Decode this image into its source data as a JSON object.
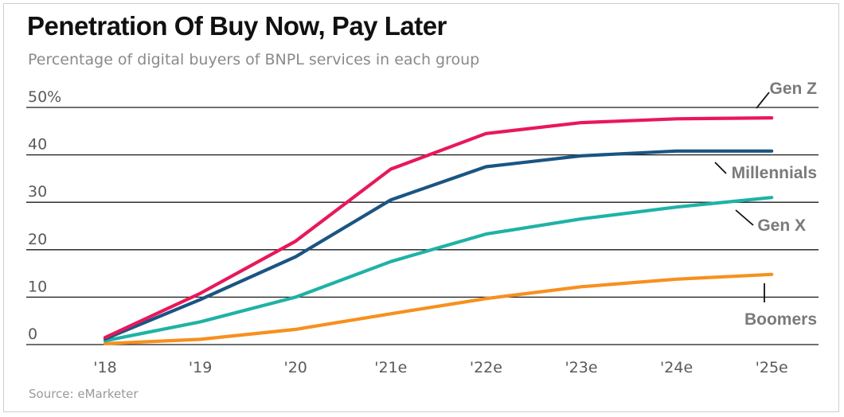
{
  "title": "Penetration Of Buy Now, Pay Later",
  "subtitle": "Percentage of digital buyers of BNPL services in each group",
  "source": "Source: eMarketer",
  "colors": {
    "gen_z": "#e8185a",
    "millennials": "#1a5582",
    "gen_x": "#1fb2a6",
    "boomers": "#f7901e",
    "grid": "#1a1a1a"
  },
  "chart_data": {
    "type": "line",
    "title": "Penetration Of Buy Now, Pay Later",
    "subtitle": "Percentage of digital buyers of BNPL services in each group",
    "categories": [
      "'18",
      "'19",
      "'20",
      "'21e",
      "'22e",
      "'23e",
      "'24e",
      "'25e"
    ],
    "y_tick_labels": [
      "0",
      "10",
      "20",
      "30",
      "40",
      "50%"
    ],
    "y_ticks": [
      0,
      10,
      20,
      30,
      40,
      50
    ],
    "ylim": [
      0,
      50
    ],
    "grid": true,
    "legend": "direct labels at right end of lines",
    "series": [
      {
        "name": "Gen Z",
        "values": [
          1.5,
          10.8,
          21.8,
          37.0,
          44.5,
          46.8,
          47.6,
          47.8
        ]
      },
      {
        "name": "Millennials",
        "values": [
          1.2,
          9.5,
          18.5,
          30.5,
          37.5,
          39.8,
          40.8,
          40.8
        ]
      },
      {
        "name": "Gen X",
        "values": [
          0.8,
          4.8,
          10.0,
          17.5,
          23.3,
          26.5,
          29.0,
          31.0
        ]
      },
      {
        "name": "Boomers",
        "values": [
          0.2,
          1.1,
          3.2,
          6.5,
          9.7,
          12.2,
          13.8,
          14.8
        ]
      }
    ]
  }
}
